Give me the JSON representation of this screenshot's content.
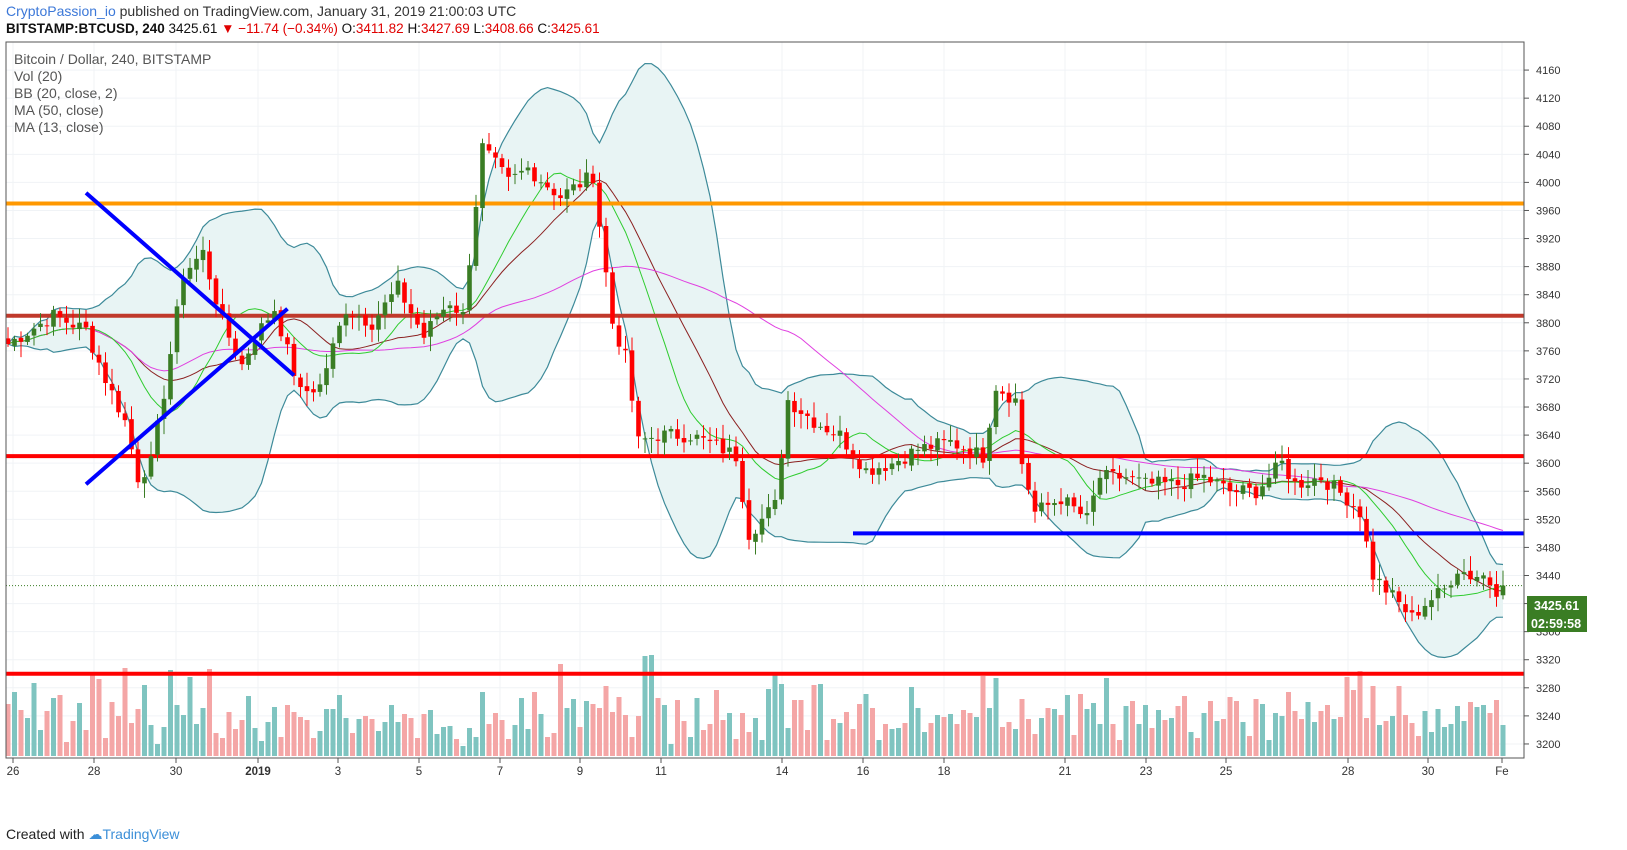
{
  "header": {
    "publisher": "CryptoPassion_io",
    "published_text": "published on TradingView.com, January 31, 2019 21:00:03 UTC",
    "symbol": "BITSTAMP:BTCUSD, 240",
    "last": "3425.61",
    "change": "−11.74 (−0.34%)",
    "o_label": "O:",
    "o": "3411.82",
    "h_label": "H:",
    "h": "3427.69",
    "l_label": "L:",
    "l": "3408.66",
    "c_label": "C:",
    "c": "3425.61"
  },
  "legend": {
    "title": "Bitcoin / Dollar, 240, BITSTAMP",
    "vol": "Vol (20)",
    "bb": "BB (20, close, 2)",
    "ma50": "MA (50, close)",
    "ma13": "MA (13, close)"
  },
  "badges": {
    "price": "3425.61",
    "timer": "02:59:58"
  },
  "footer": {
    "text": "Created with",
    "brand": "TradingView"
  },
  "chart_data": {
    "type": "candlestick",
    "ylim": [
      3180,
      4200
    ],
    "y_ticks": [
      3200,
      3240,
      3280,
      3320,
      3360,
      3400,
      3440,
      3480,
      3520,
      3560,
      3600,
      3640,
      3680,
      3720,
      3760,
      3800,
      3840,
      3880,
      3920,
      3960,
      4000,
      4040,
      4080,
      4120,
      4160
    ],
    "x_ticks": [
      {
        "label": "26",
        "x": 13
      },
      {
        "label": "28",
        "x": 94
      },
      {
        "label": "30",
        "x": 176
      },
      {
        "label": "2019",
        "x": 258
      },
      {
        "label": "3",
        "x": 338
      },
      {
        "label": "5",
        "x": 419
      },
      {
        "label": "7",
        "x": 500
      },
      {
        "label": "9",
        "x": 580
      },
      {
        "label": "11",
        "x": 661
      },
      {
        "label": "14",
        "x": 782
      },
      {
        "label": "16",
        "x": 863
      },
      {
        "label": "18",
        "x": 944
      },
      {
        "label": "21",
        "x": 1065
      },
      {
        "label": "23",
        "x": 1146
      },
      {
        "label": "25",
        "x": 1226
      },
      {
        "label": "28",
        "x": 1348
      },
      {
        "label": "30",
        "x": 1428
      },
      {
        "label": "Fe",
        "x": 1502
      }
    ],
    "anchors": [
      [
        0,
        3770
      ],
      [
        7,
        3810
      ],
      [
        12,
        3790
      ],
      [
        15,
        3720
      ],
      [
        18,
        3660
      ],
      [
        20,
        3580
      ],
      [
        22,
        3600
      ],
      [
        24,
        3700
      ],
      [
        27,
        3870
      ],
      [
        30,
        3900
      ],
      [
        33,
        3800
      ],
      [
        36,
        3740
      ],
      [
        38,
        3780
      ],
      [
        41,
        3820
      ],
      [
        45,
        3700
      ],
      [
        48,
        3710
      ],
      [
        52,
        3820
      ],
      [
        56,
        3800
      ],
      [
        60,
        3850
      ],
      [
        64,
        3780
      ],
      [
        66,
        3810
      ],
      [
        68,
        3830
      ],
      [
        70,
        3810
      ],
      [
        73,
        4050
      ],
      [
        77,
        4000
      ],
      [
        80,
        4020
      ],
      [
        85,
        3980
      ],
      [
        90,
        4010
      ],
      [
        93,
        3800
      ],
      [
        95,
        3750
      ],
      [
        97,
        3630
      ],
      [
        100,
        3640
      ],
      [
        105,
        3640
      ],
      [
        110,
        3620
      ],
      [
        112,
        3610
      ],
      [
        114,
        3500
      ],
      [
        118,
        3540
      ],
      [
        120,
        3690
      ],
      [
        124,
        3660
      ],
      [
        128,
        3640
      ],
      [
        132,
        3590
      ],
      [
        136,
        3600
      ],
      [
        140,
        3620
      ],
      [
        145,
        3630
      ],
      [
        150,
        3610
      ],
      [
        152,
        3710
      ],
      [
        155,
        3690
      ],
      [
        156,
        3600
      ],
      [
        158,
        3530
      ],
      [
        162,
        3550
      ],
      [
        166,
        3520
      ],
      [
        168,
        3580
      ],
      [
        172,
        3580
      ],
      [
        175,
        3570
      ],
      [
        180,
        3570
      ],
      [
        184,
        3580
      ],
      [
        188,
        3560
      ],
      [
        192,
        3560
      ],
      [
        196,
        3600
      ],
      [
        198,
        3570
      ],
      [
        202,
        3580
      ],
      [
        206,
        3550
      ],
      [
        208,
        3530
      ],
      [
        210,
        3440
      ],
      [
        212,
        3420
      ],
      [
        214,
        3400
      ],
      [
        216,
        3380
      ],
      [
        218,
        3400
      ],
      [
        221,
        3420
      ],
      [
        223,
        3450
      ],
      [
        225,
        3440
      ],
      [
        227,
        3440
      ],
      [
        229,
        3420
      ],
      [
        230,
        3425.61
      ]
    ],
    "volume_heights": [
      52,
      64,
      46,
      38,
      73,
      26,
      45,
      58,
      61,
      14,
      35,
      53,
      26,
      81,
      77,
      18,
      54,
      40,
      88,
      33,
      47,
      71,
      31,
      12,
      29,
      86,
      51,
      41,
      79,
      32,
      48,
      87,
      23,
      18,
      44,
      27,
      36,
      60,
      28,
      15,
      34,
      49,
      19,
      51,
      44,
      39,
      36,
      18,
      25,
      47,
      47,
      61,
      38,
      23,
      37,
      40,
      37,
      25,
      34,
      51,
      34,
      42,
      38,
      18,
      42,
      46,
      22,
      29,
      30,
      17,
      10,
      28,
      19,
      64,
      32,
      43,
      36,
      17,
      31,
      58,
      27,
      64,
      42,
      19,
      23,
      92,
      48,
      57,
      29,
      55,
      52,
      48,
      70,
      44,
      59,
      41,
      19,
      40,
      100,
      101,
      58,
      51,
      12,
      56,
      35,
      19,
      58,
      26,
      32,
      66,
      36,
      43,
      17,
      43,
      24,
      38,
      16,
      67,
      82,
      72,
      28,
      56,
      56,
      26,
      71,
      72,
      16,
      37,
      33,
      44,
      27,
      52,
      62,
      48,
      16,
      32,
      27,
      28,
      33,
      69,
      48,
      24,
      33,
      41,
      39,
      42,
      32,
      46,
      43,
      39,
      80,
      48,
      78,
      29,
      34,
      27,
      57,
      37,
      22,
      38,
      48,
      47,
      41,
      61,
      21,
      62,
      47,
      53,
      32,
      78,
      32,
      16,
      50,
      55,
      32,
      51,
      28,
      46,
      36,
      38,
      50,
      60,
      24,
      18,
      43,
      55,
      35,
      37,
      59,
      55,
      34,
      20,
      57,
      52,
      16,
      43,
      40,
      64,
      45,
      37,
      54,
      34,
      45,
      51,
      37,
      39,
      79,
      66,
      85,
      38,
      70,
      31,
      35,
      40,
      70,
      41,
      33,
      20,
      45,
      24,
      47,
      29,
      32,
      50,
      35,
      54,
      49,
      51,
      43,
      56,
      31
    ],
    "indicators": [
      "Vol (20)",
      "BB (20, close, 2)",
      "MA (50, close)",
      "MA (13, close)"
    ],
    "levels": [
      {
        "price": 3970,
        "color": "#ff9800"
      },
      {
        "price": 3810,
        "color": "#c0392b"
      },
      {
        "price": 3610,
        "color": "#ff0000"
      },
      {
        "price": 3300,
        "color": "#ff0000"
      },
      {
        "price": 3500,
        "color": "#0000ff",
        "from_index": 130
      }
    ],
    "colors": {
      "up": "#3a7d24",
      "down": "#ff0000",
      "vol_up": "#7fc4c0",
      "vol_down": "#f4a6a6",
      "bb": "#3d8a99",
      "bb_fill": "#e8f4f4",
      "ma13": "#2ecc2e",
      "ma50": "#e040e0",
      "ma20": "#8b2020",
      "trend": "#0000ff"
    }
  }
}
